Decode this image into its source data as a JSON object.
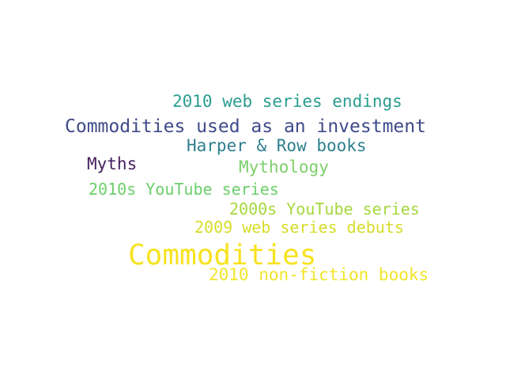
{
  "words": [
    {
      "text": "2010 web series endings",
      "color": "#2a9d8f"
    },
    {
      "text": "Commodities used as an investment",
      "color": "#3f4a8a"
    },
    {
      "text": "Harper & Row books",
      "color": "#2e7f8e"
    },
    {
      "text": "Myths",
      "color": "#44205e"
    },
    {
      "text": "Mythology",
      "color": "#7ccf6b"
    },
    {
      "text": "2010s YouTube series",
      "color": "#6ccf6a"
    },
    {
      "text": "2000s YouTube series",
      "color": "#a5d83c"
    },
    {
      "text": "2009 web series debuts",
      "color": "#d8dc2a"
    },
    {
      "text": "Commodities",
      "color": "#f7e21f"
    },
    {
      "text": "2010 non-fiction books",
      "color": "#f1e42a"
    }
  ]
}
